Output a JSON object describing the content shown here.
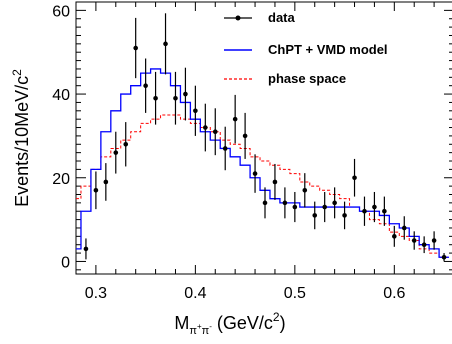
{
  "chart_data": {
    "type": "histogram",
    "title": "",
    "xlabel": {
      "base": "M",
      "sub_main": "π",
      "sub_sup1": "+",
      "sub_mid": "π",
      "sub_sup2": "-",
      "units_prefix": " (GeV/c",
      "units_sup": "2",
      "units_suffix": ")"
    },
    "ylabel": {
      "text": "Events/10MeV/c",
      "sup": "2"
    },
    "xlim": [
      0.28,
      0.66
    ],
    "ylim": [
      -3,
      62
    ],
    "x_ticks": [
      0.3,
      0.4,
      0.5,
      0.6
    ],
    "x_tick_labels": [
      "0.3",
      "0.4",
      "0.5",
      "0.6"
    ],
    "y_ticks": [
      0,
      20,
      40,
      60
    ],
    "y_tick_labels": [
      "0",
      "20",
      "40",
      "60"
    ],
    "legend": {
      "position": "top-right",
      "entries": [
        {
          "label": "data",
          "style": "points",
          "color": "#000000"
        },
        {
          "label": "ChPT + VMD model",
          "style": "solid-step",
          "color": "#0000ff"
        },
        {
          "label": "phase space",
          "style": "dashed-step",
          "color": "#ff0000"
        }
      ]
    },
    "bin_edges": [
      0.28,
      0.285,
      0.295,
      0.305,
      0.315,
      0.325,
      0.335,
      0.345,
      0.355,
      0.365,
      0.375,
      0.385,
      0.395,
      0.405,
      0.415,
      0.425,
      0.435,
      0.445,
      0.455,
      0.465,
      0.475,
      0.485,
      0.495,
      0.505,
      0.515,
      0.525,
      0.535,
      0.545,
      0.555,
      0.565,
      0.575,
      0.585,
      0.595,
      0.605,
      0.615,
      0.625,
      0.635,
      0.645,
      0.655
    ],
    "series": [
      {
        "name": "data",
        "kind": "points",
        "x": [
          0.29,
          0.3,
          0.31,
          0.32,
          0.33,
          0.34,
          0.35,
          0.36,
          0.37,
          0.38,
          0.39,
          0.4,
          0.41,
          0.42,
          0.43,
          0.44,
          0.45,
          0.46,
          0.47,
          0.48,
          0.49,
          0.5,
          0.51,
          0.52,
          0.53,
          0.54,
          0.55,
          0.56,
          0.57,
          0.58,
          0.59,
          0.6,
          0.61,
          0.62,
          0.63,
          0.64,
          0.65
        ],
        "y": [
          3,
          17,
          19,
          26,
          28,
          51,
          42,
          39,
          52,
          39,
          40,
          36,
          32,
          31,
          27,
          34,
          30,
          21,
          14,
          19,
          14,
          13,
          17,
          11,
          13,
          14,
          11,
          20,
          12,
          13,
          12,
          6,
          8,
          5,
          4,
          5,
          1
        ],
        "err": [
          2.5,
          4.5,
          4.5,
          5,
          5.3,
          7.2,
          6.5,
          6.3,
          7.3,
          6.3,
          6.3,
          6,
          5.7,
          5.6,
          5.2,
          5.8,
          5.5,
          4.6,
          3.7,
          4.3,
          3.7,
          3.6,
          4.1,
          3.3,
          3.6,
          3.7,
          3.3,
          4.5,
          3.5,
          3.6,
          3.5,
          2.5,
          2.8,
          2.2,
          2,
          2.2,
          1
        ]
      },
      {
        "name": "ChPT + VMD model",
        "kind": "step",
        "color": "#0000ff",
        "values": [
          3,
          12,
          22,
          31,
          36,
          40,
          42,
          45,
          46,
          45,
          42,
          38,
          34,
          31,
          29,
          27,
          25,
          23,
          20,
          17,
          15,
          14,
          14,
          13,
          13,
          13,
          13,
          13,
          13,
          12,
          12,
          11,
          9,
          8,
          6,
          4,
          3,
          1
        ]
      },
      {
        "name": "phase space",
        "kind": "dashed-step",
        "color": "#ff0000",
        "values": [
          15,
          18,
          22,
          25,
          27,
          29,
          31,
          33,
          34,
          35,
          35,
          34,
          33,
          32,
          31,
          29,
          28,
          27,
          25,
          24,
          23,
          22,
          21,
          19,
          18,
          17,
          16,
          15,
          13,
          12,
          10,
          9,
          7,
          6,
          5,
          3,
          2,
          1
        ]
      }
    ]
  }
}
